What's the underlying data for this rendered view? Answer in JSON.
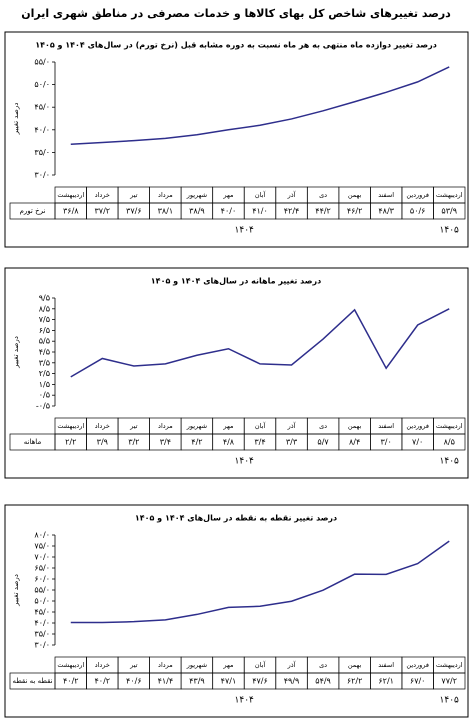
{
  "title": "درصد تغییرهای شاخص کل بهای کالاها و خدمات مصرفی در مناطق شهری ایران",
  "chart_data": [
    {
      "type": "line",
      "title": "درصد تغییر دوازده ماه منتهی به هر ماه نسبت به دوره مشابه قبل (نرخ تورم) در سال‌های ۱۴۰۴ و ۱۴۰۵",
      "ylabel": "درصد تغییر",
      "categories": [
        "اردیبهشت",
        "خرداد",
        "تیر",
        "مرداد",
        "شهریور",
        "مهر",
        "آبان",
        "آذر",
        "دی",
        "بهمن",
        "اسفند",
        "فروردین",
        "اردیبهشت"
      ],
      "period_labels": [
        "۱۴۰۴",
        "۱۴۰۵"
      ],
      "series": [
        {
          "name": "نرخ تورم",
          "color": "#2e2e8c",
          "values": [
            36.8,
            37.2,
            37.6,
            38.1,
            38.9,
            40.0,
            41.0,
            42.4,
            44.2,
            46.2,
            48.3,
            50.6,
            53.9
          ],
          "value_labels": [
            "۳۶/۸",
            "۳۷/۲",
            "۳۷/۶",
            "۳۸/۱",
            "۳۸/۹",
            "۴۰/۰",
            "۴۱/۰",
            "۴۲/۴",
            "۴۴/۲",
            "۴۶/۲",
            "۴۸/۳",
            "۵۰/۶",
            "۵۳/۹"
          ]
        }
      ],
      "ylim": [
        30,
        55
      ],
      "yticks": [
        {
          "value": 30,
          "label": "۳۰/۰"
        },
        {
          "value": 35,
          "label": "۳۵/۰"
        },
        {
          "value": 40,
          "label": "۴۰/۰"
        },
        {
          "value": 45,
          "label": "۴۵/۰"
        },
        {
          "value": 50,
          "label": "۵۰/۰"
        },
        {
          "value": 55,
          "label": "۵۵/۰"
        }
      ]
    },
    {
      "type": "line",
      "title": "درصد تغییر ماهانه در سال‌های ۱۴۰۴ و ۱۴۰۵",
      "ylabel": "درصد تغییر",
      "categories": [
        "اردیبهشت",
        "خرداد",
        "تیر",
        "مرداد",
        "شهریور",
        "مهر",
        "آبان",
        "آذر",
        "دی",
        "بهمن",
        "اسفند",
        "فروردین",
        "اردیبهشت"
      ],
      "period_labels": [
        "۱۴۰۴",
        "۱۴۰۵"
      ],
      "series": [
        {
          "name": "ماهانه",
          "color": "#2e2e8c",
          "values": [
            2.2,
            3.9,
            3.2,
            3.4,
            4.2,
            4.8,
            3.4,
            3.3,
            5.7,
            8.4,
            3.0,
            7.0,
            8.5
          ],
          "value_labels": [
            "۲/۲",
            "۳/۹",
            "۳/۲",
            "۳/۴",
            "۴/۲",
            "۴/۸",
            "۳/۴",
            "۳/۳",
            "۵/۷",
            "۸/۴",
            "۳/۰",
            "۷/۰",
            "۸/۵"
          ]
        }
      ],
      "ylim": [
        -0.5,
        9.5
      ],
      "yticks": [
        {
          "value": -0.5,
          "label": "-۰/۵"
        },
        {
          "value": 0.5,
          "label": "۰/۵"
        },
        {
          "value": 1.5,
          "label": "۱/۵"
        },
        {
          "value": 2.5,
          "label": "۲/۵"
        },
        {
          "value": 3.5,
          "label": "۳/۵"
        },
        {
          "value": 4.5,
          "label": "۴/۵"
        },
        {
          "value": 5.5,
          "label": "۵/۵"
        },
        {
          "value": 6.5,
          "label": "۶/۵"
        },
        {
          "value": 7.5,
          "label": "۷/۵"
        },
        {
          "value": 8.5,
          "label": "۸/۵"
        },
        {
          "value": 9.5,
          "label": "۹/۵"
        }
      ]
    },
    {
      "type": "line",
      "title": "درصد تغییر نقطه به نقطه در سال‌های ۱۴۰۴ و ۱۴۰۵",
      "ylabel": "درصد تغییر",
      "categories": [
        "اردیبهشت",
        "خرداد",
        "تیر",
        "مرداد",
        "شهریور",
        "مهر",
        "آبان",
        "آذر",
        "دی",
        "بهمن",
        "اسفند",
        "فروردین",
        "اردیبهشت"
      ],
      "period_labels": [
        "۱۴۰۴",
        "۱۴۰۵"
      ],
      "series": [
        {
          "name": "نقطه به نقطه",
          "color": "#2e2e8c",
          "values": [
            40.2,
            40.2,
            40.6,
            41.4,
            43.9,
            47.1,
            47.6,
            49.9,
            54.9,
            62.2,
            62.1,
            67.0,
            77.2
          ],
          "value_labels": [
            "۴۰/۲",
            "۴۰/۲",
            "۴۰/۶",
            "۴۱/۴",
            "۴۳/۹",
            "۴۷/۱",
            "۴۷/۶",
            "۴۹/۹",
            "۵۴/۹",
            "۶۲/۲",
            "۶۲/۱",
            "۶۷/۰",
            "۷۷/۲"
          ]
        }
      ],
      "ylim": [
        30,
        80
      ],
      "yticks": [
        {
          "value": 30,
          "label": "۳۰/۰"
        },
        {
          "value": 35,
          "label": "۳۵/۰"
        },
        {
          "value": 40,
          "label": "۴۰/۰"
        },
        {
          "value": 45,
          "label": "۴۵/۰"
        },
        {
          "value": 50,
          "label": "۵۰/۰"
        },
        {
          "value": 55,
          "label": "۵۵/۰"
        },
        {
          "value": 60,
          "label": "۶۰/۰"
        },
        {
          "value": 65,
          "label": "۶۵/۰"
        },
        {
          "value": 70,
          "label": "۷۰/۰"
        },
        {
          "value": 75,
          "label": "۷۵/۰"
        },
        {
          "value": 80,
          "label": "۸۰/۰"
        }
      ]
    }
  ]
}
